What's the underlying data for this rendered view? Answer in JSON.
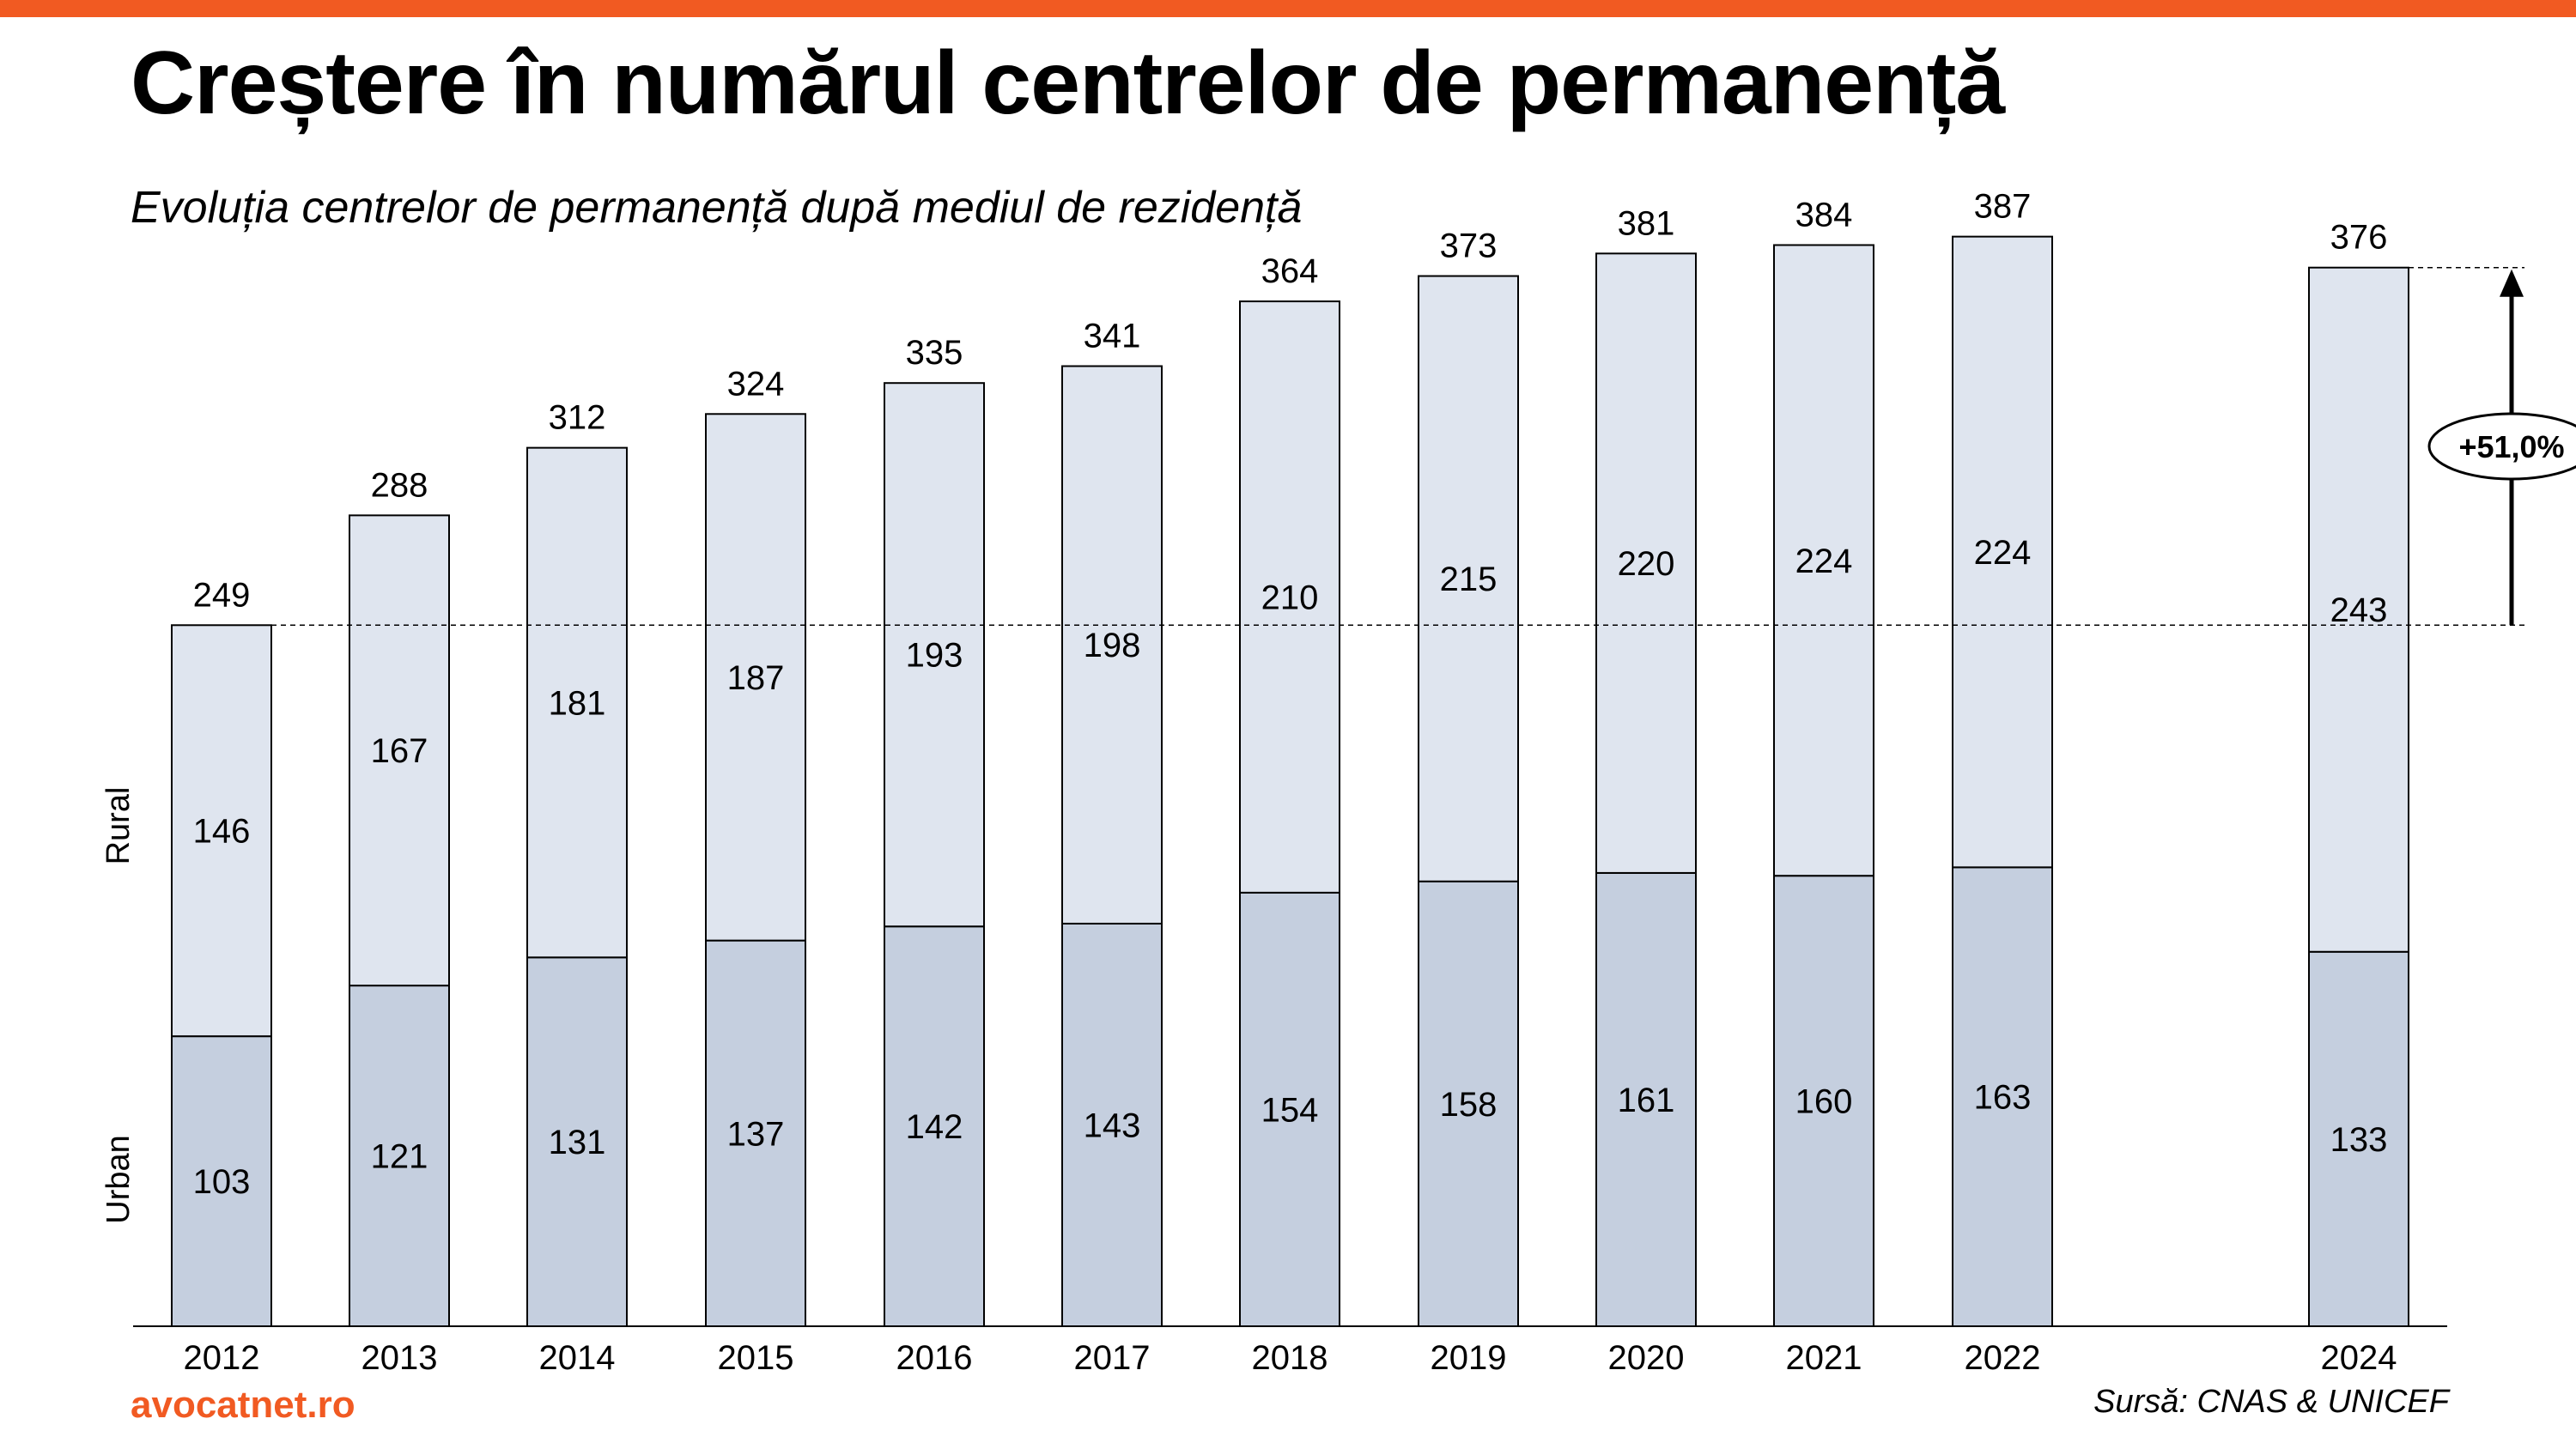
{
  "header": {
    "title": "Creștere în numărul centrelor de permanență",
    "subtitle": "Evoluția centrelor de permanență după mediul de rezidență"
  },
  "footer": {
    "brand": "avocatnet.ro",
    "source": "Sursă: CNAS & UNICEF"
  },
  "colors": {
    "accent": "#f15a22",
    "urban": "#c5cfdf",
    "rural": "#dfe5ef",
    "bar_outline": "#000000"
  },
  "chart_data": {
    "type": "bar",
    "stacked": true,
    "categories": [
      "2012",
      "2013",
      "2014",
      "2015",
      "2016",
      "2017",
      "2018",
      "2019",
      "2020",
      "2021",
      "2022",
      "2024"
    ],
    "series": [
      {
        "name": "Urban",
        "values": [
          103,
          121,
          131,
          137,
          142,
          143,
          154,
          158,
          161,
          160,
          163,
          133
        ]
      },
      {
        "name": "Rural",
        "values": [
          146,
          167,
          181,
          187,
          193,
          198,
          210,
          215,
          220,
          224,
          224,
          243
        ]
      }
    ],
    "totals": [
      249,
      288,
      312,
      324,
      335,
      341,
      364,
      373,
      381,
      384,
      387,
      376
    ],
    "annotation": {
      "label": "+51,0%",
      "from": "2012",
      "to": "2024",
      "from_value": 249,
      "to_value": 376
    },
    "ylim": [
      0,
      400
    ],
    "grid": false,
    "legend": "left-vertical"
  }
}
